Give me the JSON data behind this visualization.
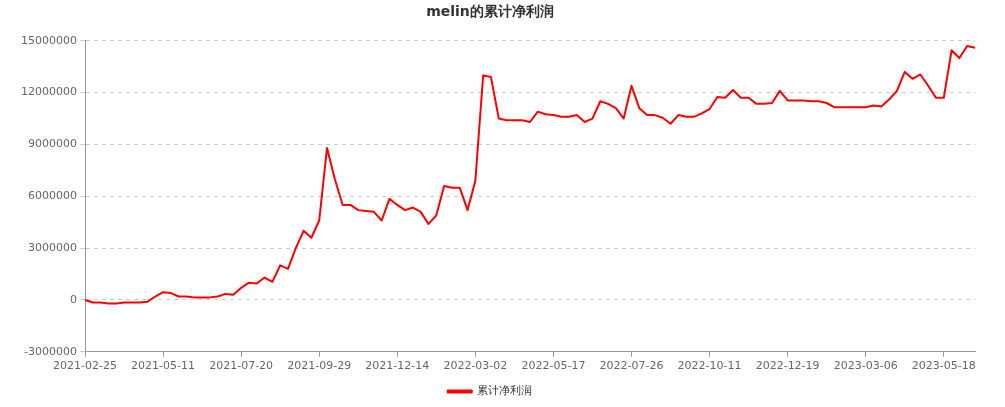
{
  "chart_data": {
    "type": "line",
    "title": "melin的累计净利润",
    "categories": [
      "2021-02-25",
      null,
      null,
      null,
      null,
      null,
      null,
      null,
      null,
      null,
      "2021-05-11",
      null,
      null,
      null,
      null,
      null,
      null,
      null,
      null,
      null,
      "2021-07-20",
      null,
      null,
      null,
      null,
      null,
      null,
      null,
      null,
      null,
      "2021-09-29",
      null,
      null,
      null,
      null,
      null,
      null,
      null,
      null,
      null,
      "2021-12-14",
      null,
      null,
      null,
      null,
      null,
      null,
      null,
      null,
      null,
      "2022-03-02",
      null,
      null,
      null,
      null,
      null,
      null,
      null,
      null,
      null,
      "2022-05-17",
      null,
      null,
      null,
      null,
      null,
      null,
      null,
      null,
      null,
      "2022-07-26",
      null,
      null,
      null,
      null,
      null,
      null,
      null,
      null,
      null,
      "2022-10-11",
      null,
      null,
      null,
      null,
      null,
      null,
      null,
      null,
      null,
      "2022-12-19",
      null,
      null,
      null,
      null,
      null,
      null,
      null,
      null,
      null,
      "2023-03-06",
      null,
      null,
      null,
      null,
      null,
      null,
      null,
      null,
      null,
      "2023-05-18",
      null,
      null,
      null,
      null
    ],
    "series": [
      {
        "name": "累计净利润",
        "color": "#ff0000",
        "values": [
          0,
          -150000,
          -150000,
          -200000,
          -200000,
          -150000,
          -150000,
          -150000,
          -100000,
          200000,
          450000,
          400000,
          200000,
          200000,
          150000,
          150000,
          150000,
          200000,
          350000,
          300000,
          700000,
          1000000,
          950000,
          1300000,
          1050000,
          2000000,
          1800000,
          3000000,
          4000000,
          3600000,
          4600000,
          8800000,
          7000000,
          5500000,
          5500000,
          5200000,
          5150000,
          5100000,
          4600000,
          5850000,
          5500000,
          5200000,
          5350000,
          5100000,
          4400000,
          4900000,
          6600000,
          6500000,
          6500000,
          5200000,
          6900000,
          13000000,
          12900000,
          10500000,
          10400000,
          10400000,
          10400000,
          10300000,
          10900000,
          10750000,
          10700000,
          10600000,
          10600000,
          10700000,
          10300000,
          10500000,
          11500000,
          11350000,
          11100000,
          10500000,
          12400000,
          11100000,
          10700000,
          10700000,
          10550000,
          10200000,
          10700000,
          10600000,
          10600000,
          10800000,
          11050000,
          11750000,
          11700000,
          12150000,
          11700000,
          11700000,
          11350000,
          11350000,
          11400000,
          12100000,
          11550000,
          11550000,
          11550000,
          11500000,
          11500000,
          11400000,
          11150000,
          11150000,
          11150000,
          11150000,
          11150000,
          11250000,
          11200000,
          11600000,
          12100000,
          13200000,
          12800000,
          13050000,
          12400000,
          11700000,
          11700000,
          14450000,
          14000000,
          14700000,
          14600000
        ]
      }
    ],
    "ylim": [
      -3000000,
      15000000
    ],
    "yticks": [
      -3000000,
      0,
      3000000,
      6000000,
      9000000,
      12000000,
      15000000
    ],
    "grid": "y",
    "legend": "bottom",
    "marker": "none",
    "line_style": "solid"
  }
}
